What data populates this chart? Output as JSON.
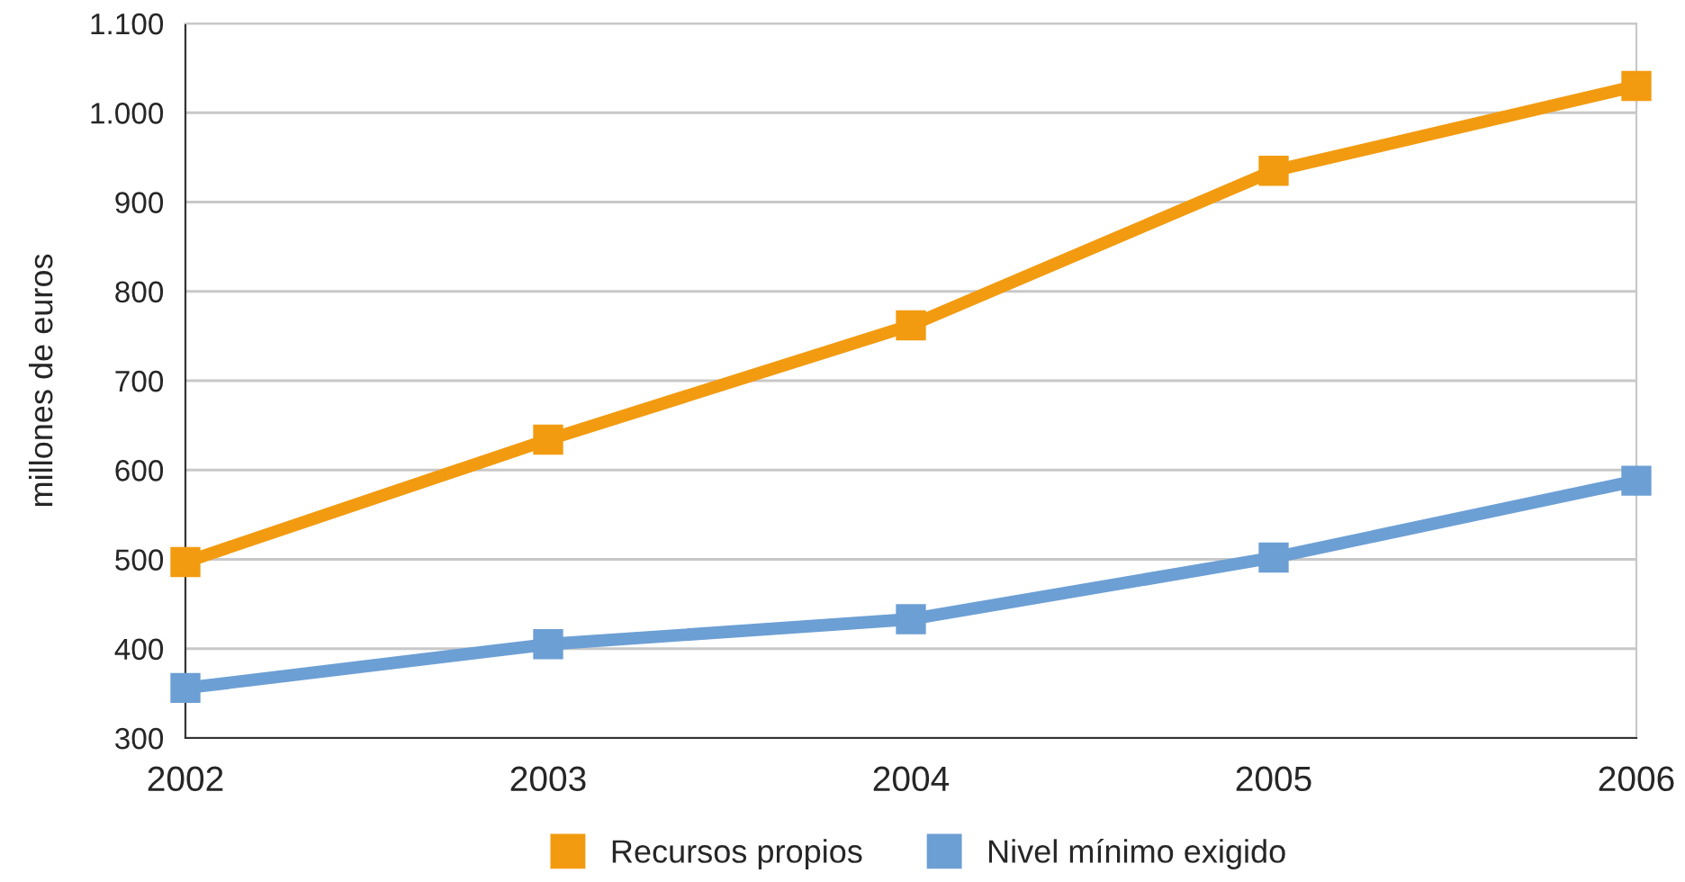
{
  "chart_data": {
    "type": "line",
    "ylabel": "millones de euros",
    "categories": [
      "2002",
      "2003",
      "2004",
      "2005",
      "2006"
    ],
    "series": [
      {
        "name": "Recursos propios",
        "color": "#f29b10",
        "values": [
          497,
          634,
          762,
          935,
          1030
        ]
      },
      {
        "name": "Nivel mínimo exigido",
        "color": "#6c9fd4",
        "values": [
          356,
          405,
          433,
          502,
          588
        ]
      }
    ],
    "ylim": [
      300,
      1100
    ],
    "yticks": [
      300,
      400,
      500,
      600,
      700,
      800,
      900,
      {
        "value": 1000,
        "label": "1.000"
      },
      {
        "value": 1100,
        "label": "1.100"
      }
    ],
    "grid": "y",
    "legend": "bottom",
    "marker": "square",
    "line_style": "solid"
  }
}
